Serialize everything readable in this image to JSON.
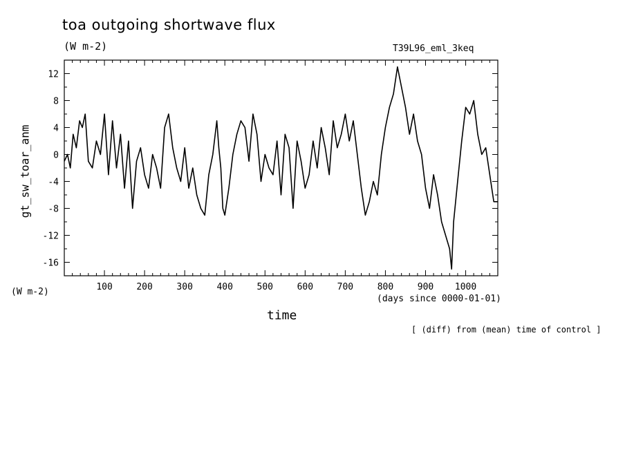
{
  "chart_data": {
    "type": "line",
    "title": "toa outgoing shortwave flux",
    "title_unit": "(W m-2)",
    "run_label": "T39L96_eml_3keq",
    "ylabel": "gt_sw_toar_anm",
    "y_unit": "(W m-2)",
    "xlabel": "time",
    "x_unit": "(days since 0000-01-01)",
    "footnote": "[ (diff) from (mean) time of control ]",
    "xlim": [
      0,
      1080
    ],
    "ylim": [
      -18,
      14
    ],
    "x_ticks": [
      100,
      200,
      300,
      400,
      500,
      600,
      700,
      800,
      900,
      1000
    ],
    "y_ticks": [
      12,
      8,
      4,
      0,
      -4,
      -8,
      -12,
      -16
    ],
    "grid": false,
    "series": [
      {
        "x": [
          0,
          8,
          15,
          22,
          30,
          38,
          45,
          52,
          60,
          70,
          80,
          90,
          100,
          110,
          120,
          130,
          140,
          150,
          160,
          170,
          180,
          190,
          200,
          210,
          220,
          230,
          240,
          250,
          260,
          270,
          280,
          290,
          300,
          310,
          320,
          330,
          340,
          350,
          360,
          370,
          380,
          385,
          390,
          395,
          400,
          410,
          420,
          430,
          440,
          450,
          460,
          470,
          480,
          490,
          500,
          510,
          520,
          530,
          540,
          550,
          560,
          570,
          580,
          590,
          600,
          610,
          620,
          630,
          640,
          650,
          660,
          670,
          680,
          690,
          700,
          710,
          720,
          730,
          740,
          750,
          760,
          770,
          780,
          790,
          800,
          810,
          820,
          830,
          840,
          850,
          860,
          870,
          880,
          890,
          900,
          910,
          920,
          930,
          940,
          950,
          960,
          965,
          970,
          980,
          990,
          1000,
          1010,
          1020,
          1030,
          1040,
          1050,
          1060,
          1070,
          1080
        ],
        "values": [
          -1,
          0,
          -2,
          3,
          1,
          5,
          4,
          6,
          -1,
          -2,
          2,
          0,
          6,
          -3,
          5,
          -2,
          3,
          -5,
          2,
          -8,
          -1,
          1,
          -3,
          -5,
          0,
          -2,
          -5,
          4,
          6,
          1,
          -2,
          -4,
          1,
          -5,
          -2,
          -6,
          -8,
          -9,
          -3,
          0,
          5,
          1,
          -2,
          -8,
          -9,
          -5,
          0,
          3,
          5,
          4,
          -1,
          6,
          3,
          -4,
          0,
          -2,
          -3,
          2,
          -6,
          3,
          1,
          -8,
          2,
          -1,
          -5,
          -3,
          2,
          -2,
          4,
          1,
          -3,
          5,
          1,
          3,
          6,
          2,
          5,
          0,
          -5,
          -9,
          -7,
          -4,
          -6,
          0,
          4,
          7,
          9,
          13,
          10,
          7,
          3,
          6,
          2,
          0,
          -5,
          -8,
          -3,
          -6,
          -10,
          -12,
          -14,
          -17,
          -10,
          -4,
          2,
          7,
          6,
          8,
          3,
          0,
          1,
          -3,
          -7,
          -7
        ]
      }
    ]
  }
}
